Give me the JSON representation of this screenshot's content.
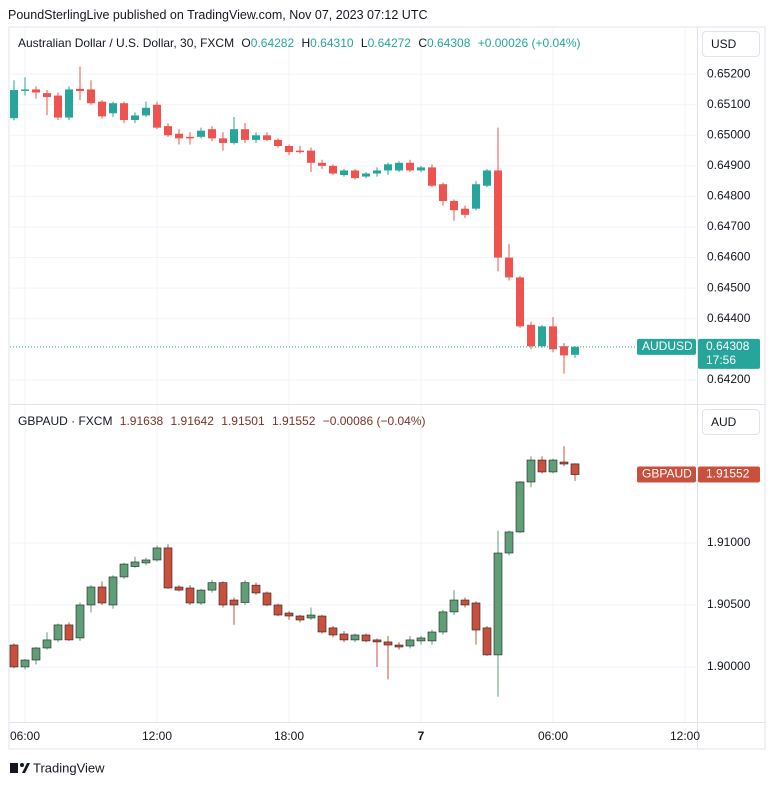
{
  "header": {
    "published": "PoundSterlingLive published on TradingView.com, Nov 07, 2023 07:12 UTC"
  },
  "footer": {
    "brand": "TradingView"
  },
  "chart_data": [
    {
      "type": "candlestick",
      "title": "Australian Dollar / U.S. Dollar, 30, FXCM",
      "legend": {
        "o_label": "O",
        "o": "0.64282",
        "h_label": "H",
        "h": "0.64310",
        "l_label": "L",
        "l": "0.64272",
        "c_label": "C",
        "c": "0.64308",
        "change": "+0.00026 (+0.04%)"
      },
      "currency": "USD",
      "up_color": "#26a69a",
      "down_color": "#ef5350",
      "open": [
        0.65056,
        0.65145,
        0.6515,
        0.65138,
        0.6513,
        0.65058,
        0.65152,
        0.6515,
        0.6511,
        0.65072,
        0.65105,
        0.6505,
        0.65065,
        0.651,
        0.6503,
        0.65005,
        0.64995,
        0.64995,
        0.6502,
        0.6499,
        0.64975,
        0.6502,
        0.64985,
        0.65,
        0.64985,
        0.64965,
        0.6495,
        0.6495,
        0.6491,
        0.649,
        0.6487,
        0.64885,
        0.64865,
        0.64875,
        0.64885,
        0.64885,
        0.6491,
        0.64885,
        0.64895,
        0.6484,
        0.64785,
        0.6476,
        0.6476,
        0.64835,
        0.64885,
        0.646,
        0.64535,
        0.6438,
        0.6431,
        0.64375,
        0.6431,
        0.64282,
        null,
        null,
        null,
        null,
        null,
        null,
        null,
        null,
        null,
        null
      ],
      "high": [
        0.6518,
        0.6519,
        0.6516,
        0.65148,
        0.6514,
        0.6516,
        0.65225,
        0.6518,
        0.65115,
        0.6511,
        0.6511,
        0.65075,
        0.6511,
        0.6511,
        0.6504,
        0.6502,
        0.6501,
        0.65025,
        0.6503,
        0.6501,
        0.6506,
        0.6504,
        0.6501,
        0.6501,
        0.6499,
        0.6497,
        0.64965,
        0.6496,
        0.6492,
        0.64905,
        0.6489,
        0.6489,
        0.6488,
        0.64895,
        0.6491,
        0.64915,
        0.6492,
        0.649,
        0.64905,
        0.64845,
        0.6479,
        0.6477,
        0.6485,
        0.6489,
        0.65025,
        0.64645,
        0.6454,
        0.6439,
        0.6438,
        0.64405,
        0.6432,
        0.6431,
        null,
        null,
        null,
        null,
        null,
        null,
        null,
        null,
        null,
        null
      ],
      "low": [
        0.65049,
        0.6513,
        0.6512,
        0.65066,
        0.6505,
        0.6505,
        0.65115,
        0.651,
        0.65055,
        0.6506,
        0.6504,
        0.6504,
        0.6506,
        0.6502,
        0.64995,
        0.6497,
        0.6497,
        0.6499,
        0.6498,
        0.6495,
        0.6497,
        0.64975,
        0.64975,
        0.6498,
        0.6496,
        0.64935,
        0.6494,
        0.6488,
        0.6489,
        0.6487,
        0.64865,
        0.64855,
        0.6486,
        0.64865,
        0.6487,
        0.6488,
        0.6488,
        0.6488,
        0.6483,
        0.6477,
        0.6472,
        0.6473,
        0.64755,
        0.6483,
        0.64555,
        0.64525,
        0.6437,
        0.643,
        0.64305,
        0.6429,
        0.6422,
        0.64272,
        null,
        null,
        null,
        null,
        null,
        null,
        null,
        null,
        null,
        null
      ],
      "close": [
        0.65148,
        0.6515,
        0.6514,
        0.65125,
        0.65058,
        0.6515,
        0.65145,
        0.65105,
        0.65062,
        0.65105,
        0.6505,
        0.65065,
        0.6509,
        0.65025,
        0.65,
        0.6499,
        0.6499,
        0.65015,
        0.6499,
        0.64975,
        0.6502,
        0.64985,
        0.65,
        0.64985,
        0.64965,
        0.64945,
        0.64945,
        0.6491,
        0.649,
        0.64875,
        0.64885,
        0.6486,
        0.64875,
        0.64885,
        0.64905,
        0.6491,
        0.64885,
        0.64895,
        0.64835,
        0.64785,
        0.64755,
        0.6474,
        0.6484,
        0.64885,
        0.646,
        0.64535,
        0.64375,
        0.6431,
        0.64375,
        0.643,
        0.6428,
        0.64308,
        null,
        null,
        null,
        null,
        null,
        null,
        null,
        null,
        null,
        null
      ],
      "ylim": [
        0.64121,
        0.65351
      ],
      "yticks": [
        {
          "value": 0.652,
          "label": "0.65200"
        },
        {
          "value": 0.651,
          "label": "0.65100"
        },
        {
          "value": 0.65,
          "label": "0.65000"
        },
        {
          "value": 0.649,
          "label": "0.64900"
        },
        {
          "value": 0.648,
          "label": "0.64800"
        },
        {
          "value": 0.647,
          "label": "0.64700"
        },
        {
          "value": 0.646,
          "label": "0.64600"
        },
        {
          "value": 0.645,
          "label": "0.64500"
        },
        {
          "value": 0.644,
          "label": "0.64400"
        },
        {
          "value": 0.642,
          "label": "0.64200"
        }
      ],
      "grid": true,
      "price_tag": {
        "symbol": "AUDUSD",
        "value": 0.64308,
        "countdown": "17:56",
        "color": "#26a69a"
      }
    },
    {
      "type": "candlestick",
      "title": "GBPAUD · FXCM",
      "legend": {
        "o": "1.91638",
        "h": "1.91642",
        "l": "1.91501",
        "c": "1.91552",
        "change": "−0.00086 (−0.04%)"
      },
      "currency": "AUD",
      "up_color": "#5e9f77",
      "down_color": "#c8503d",
      "categories": [
        null,
        "06:00",
        null,
        null,
        null,
        null,
        null,
        null,
        null,
        null,
        null,
        null,
        null,
        "12:00",
        null,
        null,
        null,
        null,
        null,
        null,
        null,
        null,
        null,
        null,
        null,
        "18:00",
        null,
        null,
        null,
        null,
        null,
        null,
        null,
        null,
        null,
        null,
        null,
        "7",
        null,
        null,
        null,
        null,
        null,
        null,
        null,
        null,
        null,
        null,
        null,
        "06:00",
        null,
        null,
        null,
        null,
        null,
        null,
        null,
        null,
        null,
        null,
        null,
        "12:00"
      ],
      "open": [
        1.90177,
        1.9,
        1.90056,
        1.90153,
        1.90218,
        1.90339,
        1.90234,
        1.905,
        1.90645,
        1.905,
        1.90726,
        1.9081,
        1.90839,
        1.90863,
        1.9096,
        1.90645,
        1.90637,
        1.90516,
        1.9062,
        1.9068,
        1.9054,
        1.9052,
        1.9066,
        1.90597,
        1.905,
        1.90435,
        1.90411,
        1.90395,
        1.90411,
        1.90315,
        1.90266,
        1.90218,
        1.90258,
        1.90218,
        1.90202,
        1.90177,
        1.90169,
        1.9021,
        1.9021,
        1.90282,
        1.90444,
        1.9054,
        1.90516,
        1.90315,
        1.90097,
        1.90919,
        1.91089,
        1.91492,
        1.91669,
        1.91573,
        1.91653,
        1.91638,
        null,
        null,
        null,
        null,
        null,
        null,
        null,
        null,
        null,
        null
      ],
      "high": [
        1.9019,
        1.90065,
        1.9016,
        1.9028,
        1.9035,
        1.9036,
        1.9052,
        1.9066,
        1.9069,
        1.9074,
        1.9084,
        1.9089,
        1.9088,
        1.9098,
        1.9099,
        1.9066,
        1.9066,
        1.9063,
        1.907,
        1.9069,
        1.9056,
        1.907,
        1.9068,
        1.9061,
        1.9051,
        1.9045,
        1.9042,
        1.9048,
        1.9042,
        1.9033,
        1.9029,
        1.9027,
        1.9027,
        1.9023,
        1.9025,
        1.902,
        1.9025,
        1.9025,
        1.903,
        1.9046,
        1.9062,
        1.9056,
        1.9053,
        1.9033,
        1.911,
        1.911,
        1.915,
        1.917,
        1.917,
        1.9168,
        1.9178,
        1.91642,
        null,
        null,
        null,
        null,
        null,
        null,
        null,
        null,
        null,
        null
      ],
      "low": [
        1.8999,
        1.8998,
        1.9002,
        1.9014,
        1.902,
        1.9021,
        1.9021,
        1.9044,
        1.905,
        1.9047,
        1.9071,
        1.908,
        1.9082,
        1.9085,
        1.9063,
        1.9061,
        1.905,
        1.905,
        1.906,
        1.9048,
        1.9034,
        1.905,
        1.9058,
        1.9049,
        1.9041,
        1.9038,
        1.9036,
        1.9038,
        1.9027,
        1.9024,
        1.902,
        1.902,
        1.902,
        1.9,
        1.899,
        1.9014,
        1.9015,
        1.9018,
        1.9018,
        1.9026,
        1.9042,
        1.9048,
        1.9018,
        1.9009,
        1.8976,
        1.909,
        1.9108,
        1.9145,
        1.9156,
        1.9156,
        1.9162,
        1.91501,
        null,
        null,
        null,
        null,
        null,
        null,
        null,
        null,
        null,
        null
      ],
      "close": [
        1.9,
        1.90056,
        1.90153,
        1.90218,
        1.90339,
        1.90218,
        1.905,
        1.90645,
        1.90516,
        1.90726,
        1.9083,
        1.90847,
        1.90863,
        1.9096,
        1.90637,
        1.9062,
        1.90516,
        1.9062,
        1.9068,
        1.905,
        1.905,
        1.9068,
        1.90597,
        1.905,
        1.90419,
        1.90411,
        1.90379,
        1.90419,
        1.90282,
        1.90258,
        1.90218,
        1.90258,
        1.9021,
        1.90202,
        1.90177,
        1.90161,
        1.90218,
        1.90234,
        1.90282,
        1.90444,
        1.9054,
        1.905,
        1.90298,
        1.90097,
        1.90919,
        1.91089,
        1.91492,
        1.91669,
        1.91573,
        1.91669,
        1.91637,
        1.91552,
        null,
        null,
        null,
        null,
        null,
        null,
        null,
        null,
        null,
        null
      ],
      "ylim": [
        1.89556,
        1.92113
      ],
      "yticks": [
        {
          "value": 1.91,
          "label": "1.91000"
        },
        {
          "value": 1.905,
          "label": "1.90500"
        },
        {
          "value": 1.9,
          "label": "1.90000"
        }
      ],
      "grid": true,
      "price_tag": {
        "symbol": "GBPAUD",
        "value": 1.91552,
        "color": "#c8503d"
      }
    }
  ]
}
